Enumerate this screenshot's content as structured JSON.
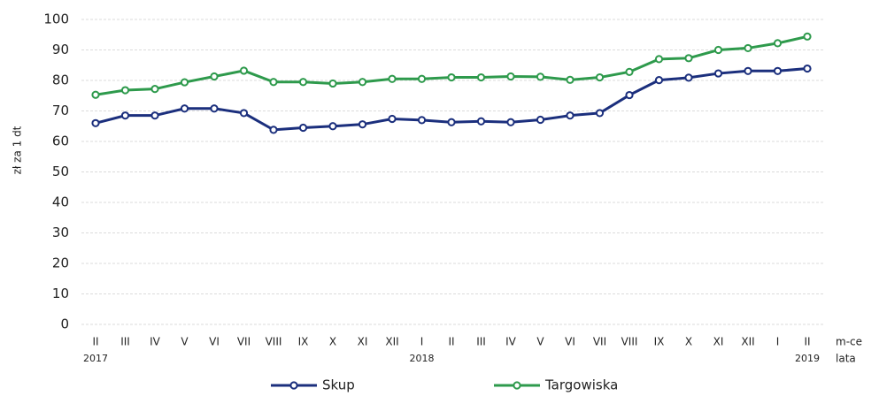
{
  "chart_data": {
    "type": "line",
    "categories": [
      "II",
      "III",
      "IV",
      "V",
      "VI",
      "VII",
      "VIII",
      "IX",
      "X",
      "XI",
      "XII",
      "I",
      "II",
      "III",
      "IV",
      "V",
      "VI",
      "VII",
      "VIII",
      "IX",
      "X",
      "XI",
      "XII",
      "I",
      "II"
    ],
    "year_labels": [
      "2017",
      null,
      null,
      null,
      null,
      null,
      null,
      null,
      null,
      null,
      null,
      "2018",
      null,
      null,
      null,
      null,
      null,
      null,
      null,
      null,
      null,
      null,
      null,
      null,
      "2019"
    ],
    "y_label": "zł za 1 dt",
    "x_label": "m-ce",
    "x_label_years": "lata",
    "series": [
      {
        "name": "Skup",
        "color": "#1b2f7d",
        "values": [
          66,
          68.5,
          68.5,
          70.8,
          70.8,
          69.3,
          63.8,
          64.5,
          65,
          65.6,
          67.4,
          67,
          66.3,
          66.6,
          66.3,
          67.1,
          68.5,
          69.3,
          75.2,
          80.1,
          80.9,
          82.3,
          83.1,
          83.1,
          83.9
        ]
      },
      {
        "name": "Targowiska",
        "color": "#2e9a4c",
        "values": [
          75.3,
          76.8,
          77.2,
          79.4,
          81.3,
          83.2,
          79.5,
          79.5,
          79,
          79.5,
          80.5,
          80.5,
          81,
          81,
          81.3,
          81.2,
          80.2,
          81,
          82.8,
          87,
          87.3,
          90,
          90.6,
          92.2,
          94.4
        ]
      }
    ],
    "ylim": [
      0,
      100
    ],
    "yticks": [
      0,
      10,
      20,
      30,
      40,
      50,
      60,
      70,
      80,
      90,
      100
    ],
    "grid": true
  }
}
